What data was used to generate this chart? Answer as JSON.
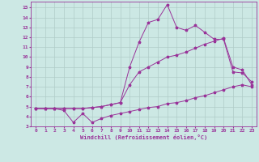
{
  "xlabel": "Windchill (Refroidissement éolien,°C)",
  "bg_color": "#cce8e4",
  "grid_color": "#b0ccc8",
  "line_color": "#993399",
  "xlim": [
    -0.5,
    23.5
  ],
  "ylim": [
    3,
    15.6
  ],
  "yticks": [
    3,
    4,
    5,
    6,
    7,
    8,
    9,
    10,
    11,
    12,
    13,
    14,
    15
  ],
  "xticks": [
    0,
    1,
    2,
    3,
    4,
    5,
    6,
    7,
    8,
    9,
    10,
    11,
    12,
    13,
    14,
    15,
    16,
    17,
    18,
    19,
    20,
    21,
    22,
    23
  ],
  "line1_x": [
    0,
    1,
    2,
    3,
    4,
    5,
    6,
    7,
    8,
    9,
    10,
    11,
    12,
    13,
    14,
    15,
    16,
    17,
    18,
    19,
    20,
    21,
    22,
    23
  ],
  "line1_y": [
    4.8,
    4.8,
    4.8,
    4.6,
    3.4,
    4.3,
    3.4,
    3.8,
    4.1,
    4.3,
    4.5,
    4.7,
    4.9,
    5.0,
    5.3,
    5.4,
    5.6,
    5.9,
    6.1,
    6.4,
    6.7,
    7.0,
    7.2,
    7.0
  ],
  "line2_x": [
    0,
    1,
    2,
    3,
    4,
    5,
    6,
    7,
    8,
    9,
    10,
    11,
    12,
    13,
    14,
    15,
    16,
    17,
    18,
    19,
    20,
    21,
    22,
    23
  ],
  "line2_y": [
    4.8,
    4.8,
    4.8,
    4.8,
    4.8,
    4.8,
    4.9,
    5.0,
    5.2,
    5.4,
    7.2,
    8.5,
    9.0,
    9.5,
    10.0,
    10.2,
    10.5,
    10.9,
    11.3,
    11.6,
    11.9,
    9.0,
    8.7,
    7.2
  ],
  "line3_x": [
    0,
    1,
    2,
    3,
    4,
    5,
    6,
    7,
    8,
    9,
    10,
    11,
    12,
    13,
    14,
    15,
    16,
    17,
    18,
    19,
    20,
    21,
    22,
    23
  ],
  "line3_y": [
    4.8,
    4.8,
    4.8,
    4.8,
    4.8,
    4.8,
    4.9,
    5.0,
    5.2,
    5.4,
    9.0,
    11.5,
    13.5,
    13.8,
    15.3,
    13.0,
    12.7,
    13.2,
    12.5,
    11.8,
    11.8,
    8.5,
    8.4,
    7.5
  ]
}
